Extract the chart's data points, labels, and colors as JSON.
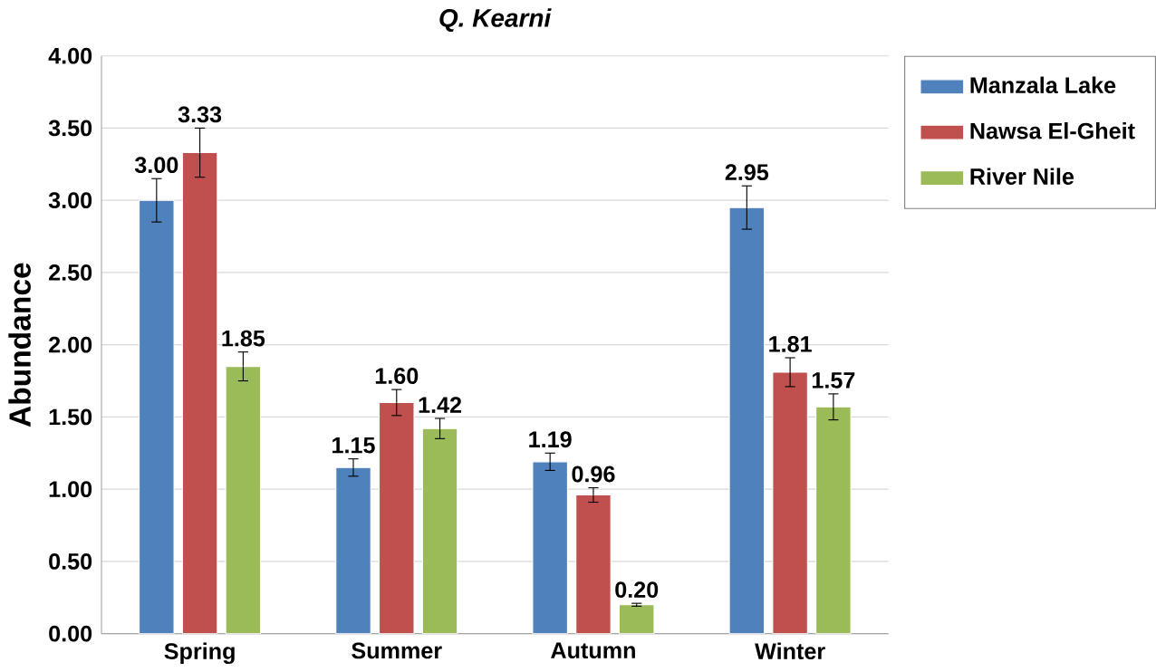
{
  "chart_data": {
    "type": "bar",
    "title": "*Q. Kearni*",
    "ylabel": "Abundance",
    "categories": [
      "Spring",
      "Summer",
      "Autumn",
      "Winter"
    ],
    "series": [
      {
        "name": "Manzala Lake",
        "color": "#4f81bd",
        "values": [
          3.0,
          1.15,
          1.19,
          2.95
        ],
        "value_labels": [
          "3.00",
          "1.15",
          "1.19",
          "2.95"
        ],
        "errors": [
          0.15,
          0.06,
          0.06,
          0.15
        ]
      },
      {
        "name": "Nawsa El-Gheit",
        "color": "#c0504d",
        "values": [
          3.33,
          1.6,
          0.96,
          1.81
        ],
        "value_labels": [
          "3.33",
          "1.60",
          "0.96",
          "1.81"
        ],
        "errors": [
          0.17,
          0.09,
          0.05,
          0.1
        ]
      },
      {
        "name": "River Nile",
        "color": "#9bbb59",
        "values": [
          1.85,
          1.42,
          0.2,
          1.57
        ],
        "value_labels": [
          "1.85",
          "1.42",
          "0.20",
          "1.57"
        ],
        "errors": [
          0.1,
          0.07,
          0.01,
          0.09
        ]
      }
    ],
    "ylim": [
      0,
      4
    ],
    "yticks": [
      {
        "value": 0,
        "label": "0.00"
      },
      {
        "value": 0.5,
        "label": "0.50"
      },
      {
        "value": 1,
        "label": "1.00"
      },
      {
        "value": 1.5,
        "label": "1.50"
      },
      {
        "value": 2,
        "label": "2.00"
      },
      {
        "value": 2.5,
        "label": "2.50"
      },
      {
        "value": 3,
        "label": "3.00"
      },
      {
        "value": 3.5,
        "label": "3.50"
      },
      {
        "value": 4,
        "label": "4.00"
      }
    ],
    "grid": "y",
    "legend": "top right"
  }
}
